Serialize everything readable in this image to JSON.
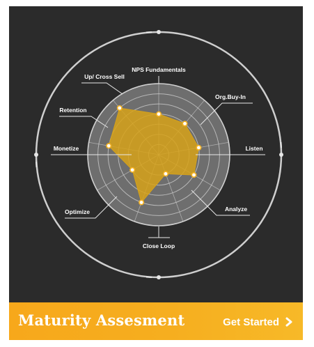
{
  "chart_data": {
    "type": "radar",
    "axes": [
      "NPS Fundamentals",
      "Org.Buy-In",
      "Listen",
      "Analyze",
      "Close Loop",
      "Optimize",
      "Monetize",
      "Retention",
      "Up/ Cross Sell"
    ],
    "values": [
      4,
      4,
      4,
      4,
      2,
      5,
      3,
      5,
      6
    ],
    "rlim": [
      0,
      7
    ],
    "rings": 7,
    "colors": {
      "fill": "#d6a21a",
      "point": "#f6b321",
      "ring": "#d7d7d7",
      "disc": "#6e6e6e"
    }
  },
  "footer": {
    "title": "Maturity Assesment",
    "cta_label": "Get Started"
  }
}
